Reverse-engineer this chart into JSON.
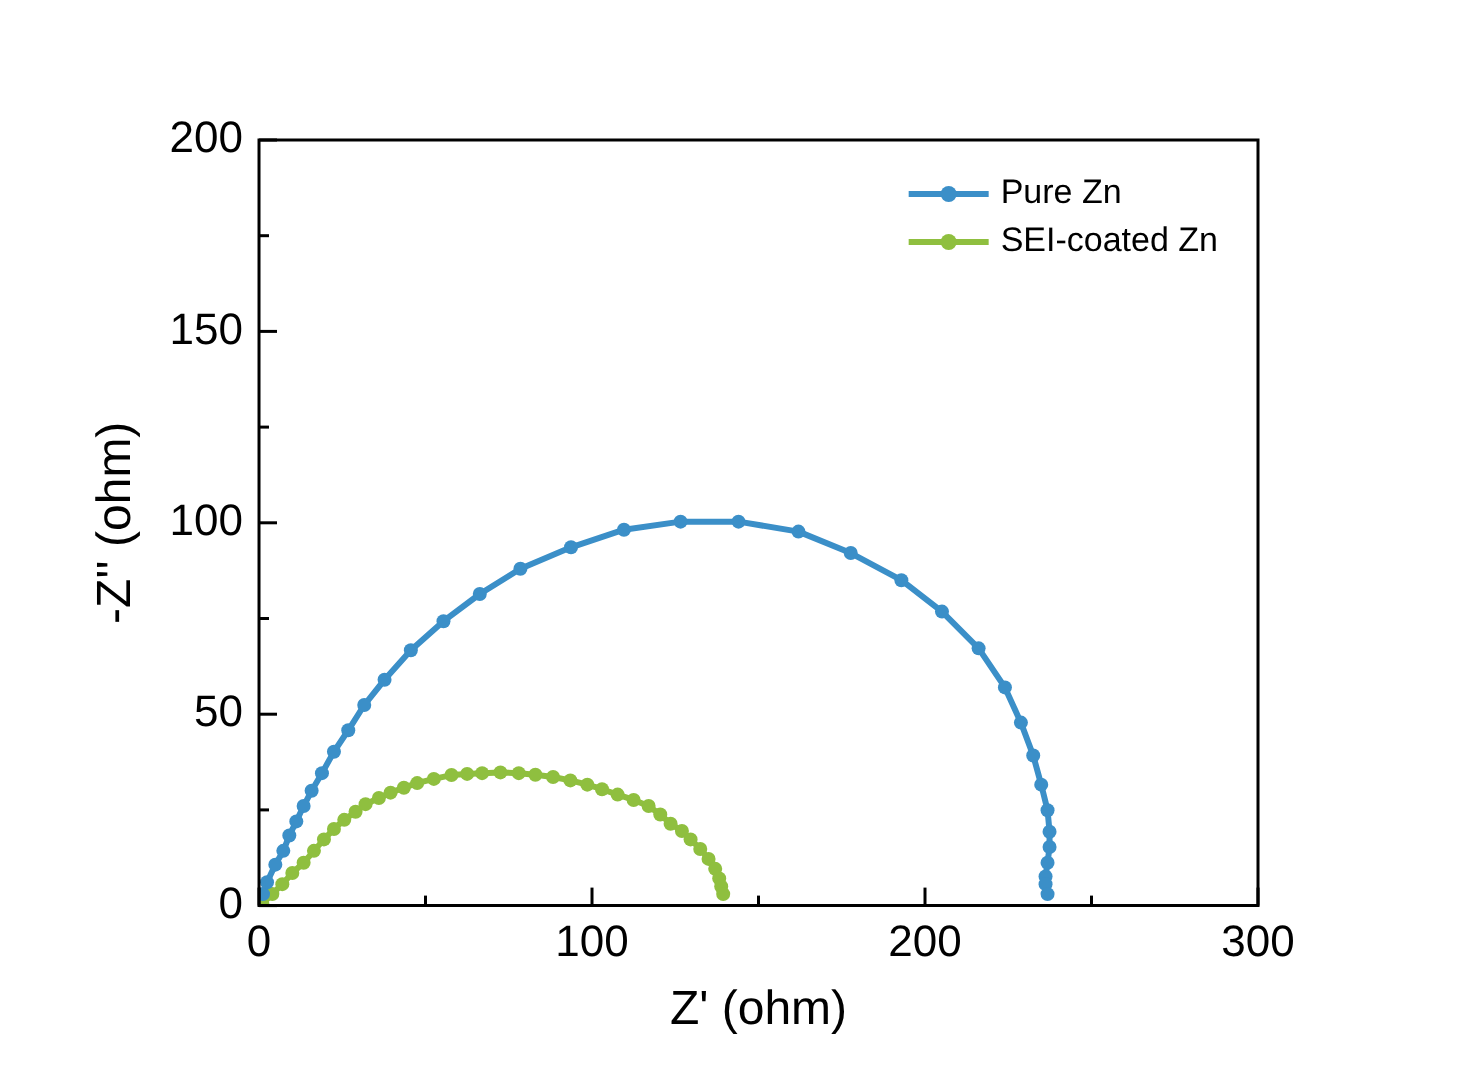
{
  "chart_data": {
    "type": "line",
    "xlabel": "Z' (ohm)",
    "ylabel": "-Z'' (ohm)",
    "xlim": [
      0,
      300
    ],
    "ylim": [
      0,
      200
    ],
    "xticks": [
      0,
      {
        "value": 50,
        "label": null
      },
      100,
      {
        "value": 150,
        "label": null
      },
      200,
      {
        "value": 250,
        "label": null
      },
      300
    ],
    "yticks": [
      0,
      {
        "value": 25,
        "label": null
      },
      50,
      {
        "value": 75,
        "label": null
      },
      100,
      {
        "value": 125,
        "label": null
      },
      150,
      {
        "value": 175,
        "label": null
      },
      200
    ],
    "grid": false,
    "legend": "top right",
    "marker": "circle",
    "line_style": "solid",
    "series": [
      {
        "name": "Pure Zn",
        "color": "#3b8fc8",
        "x": [
          1.2,
          2.4,
          4.9,
          7.3,
          9.1,
          11.2,
          13.4,
          15.8,
          18.9,
          22.5,
          26.8,
          31.6,
          37.7,
          45.6,
          55.4,
          66.3,
          78.5,
          93.7,
          109.6,
          126.6,
          144,
          162,
          177.7,
          192.9,
          205.1,
          216.1,
          224,
          228.8,
          232.5,
          234.9,
          236.8,
          237.4,
          237.4,
          236.8,
          236.2,
          236.2,
          236.8
        ],
        "values": [
          3,
          6.1,
          10.7,
          14.3,
          18.3,
          22,
          26,
          30,
          34.6,
          40.2,
          45.8,
          52.4,
          59,
          66.7,
          74.3,
          81.4,
          88,
          93.6,
          98.2,
          100.3,
          100.3,
          97.7,
          92.1,
          85,
          76.8,
          67.2,
          57,
          47.8,
          39.2,
          31.6,
          24.9,
          19.3,
          15.3,
          11.2,
          7.6,
          5.6,
          3
        ]
      },
      {
        "name": "SEI-coated Zn",
        "color": "#8fbf3f",
        "x": [
          1,
          4,
          7,
          10,
          13.4,
          16.5,
          19.5,
          22.5,
          25.6,
          29,
          32,
          36,
          39.5,
          43.5,
          47.5,
          52.5,
          57.8,
          62.5,
          67,
          72.5,
          78,
          83,
          88.3,
          93.5,
          98.6,
          103,
          107.7,
          112.5,
          117,
          120.5,
          123.6,
          127,
          129.6,
          132.5,
          135,
          137,
          138.2,
          138.8,
          139.4
        ],
        "values": [
          0.5,
          3,
          5.6,
          8.5,
          11.2,
          14.3,
          17.3,
          20,
          22.4,
          24.5,
          26.5,
          28.1,
          29.5,
          30.8,
          32,
          33.1,
          34.1,
          34.4,
          34.6,
          34.8,
          34.6,
          34.2,
          33.6,
          32.7,
          31.6,
          30.4,
          29,
          27.6,
          26,
          23.8,
          21.4,
          19.5,
          17.3,
          14.8,
          12.2,
          9.6,
          7.1,
          5,
          3
        ]
      }
    ]
  }
}
